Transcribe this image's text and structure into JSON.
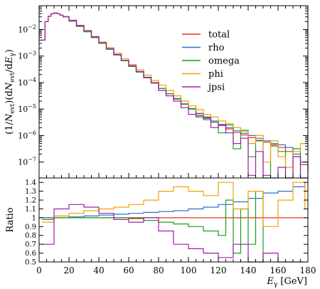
{
  "chart_data": [
    {
      "type": "line",
      "title": "",
      "ylabel": "(1/N_evt)(dN_evt/dE_γ)",
      "xlabel": "",
      "xlim": [
        0,
        180
      ],
      "ylim_log10": [
        -7.6,
        -1.1
      ],
      "yscale": "log",
      "yticks": [
        {
          "exp": -2,
          "label": "10^-2"
        },
        {
          "exp": -3,
          "label": "10^-3"
        },
        {
          "exp": -4,
          "label": "10^-4"
        },
        {
          "exp": -5,
          "label": "10^-5"
        },
        {
          "exp": -6,
          "label": "10^-6"
        },
        {
          "exp": -7,
          "label": "10^-7"
        }
      ],
      "legend_position": "top-right",
      "grid": false,
      "series": [
        {
          "name": "total",
          "color": "#e8301c",
          "x": [
            2,
            4,
            6,
            8,
            10,
            12,
            14,
            16,
            20,
            25,
            30,
            35,
            40,
            45,
            50,
            55,
            60,
            65,
            70,
            75,
            80,
            85,
            90,
            95,
            100,
            105,
            110,
            115,
            120,
            125,
            130,
            135,
            140,
            145,
            150,
            155,
            160,
            165,
            170,
            175,
            180
          ],
          "values_log10": [
            -2.4,
            -1.7,
            -1.5,
            -1.4,
            -1.38,
            -1.4,
            -1.46,
            -1.52,
            -1.68,
            -1.88,
            -2.08,
            -2.3,
            -2.52,
            -2.74,
            -2.96,
            -3.18,
            -3.39,
            -3.6,
            -3.82,
            -4.02,
            -4.22,
            -4.42,
            -4.62,
            -4.82,
            -5.0,
            -5.18,
            -5.33,
            -5.5,
            -5.62,
            -5.75,
            -5.88,
            -5.98,
            -6.08,
            -6.18,
            -6.25,
            -6.35,
            -6.45,
            -6.6,
            -6.8,
            -7.1,
            -7.3
          ]
        },
        {
          "name": "rho",
          "color": "#2b6fd6",
          "x": [
            2,
            4,
            6,
            8,
            10,
            12,
            14,
            16,
            20,
            25,
            30,
            35,
            40,
            45,
            50,
            55,
            60,
            65,
            70,
            75,
            80,
            85,
            90,
            95,
            100,
            105,
            110,
            115,
            120,
            125,
            130,
            135,
            140,
            145,
            150,
            155,
            160,
            165,
            170,
            175,
            180
          ],
          "values_log10": [
            -2.4,
            -1.7,
            -1.5,
            -1.4,
            -1.38,
            -1.4,
            -1.46,
            -1.52,
            -1.68,
            -1.88,
            -2.08,
            -2.3,
            -2.52,
            -2.74,
            -2.96,
            -3.18,
            -3.39,
            -3.6,
            -3.82,
            -4.02,
            -4.22,
            -4.42,
            -4.6,
            -4.8,
            -4.98,
            -5.16,
            -5.3,
            -5.45,
            -5.58,
            -5.7,
            -5.82,
            -5.92,
            -6.0,
            -6.1,
            -6.2,
            -6.3,
            -6.35,
            -6.45,
            -6.7,
            -7.0,
            -7.3
          ]
        },
        {
          "name": "omega",
          "color": "#1b9e1b",
          "x": [
            2,
            4,
            6,
            8,
            10,
            12,
            14,
            16,
            20,
            25,
            30,
            35,
            40,
            45,
            50,
            55,
            60,
            65,
            70,
            75,
            80,
            85,
            90,
            95,
            100,
            105,
            110,
            115,
            120,
            125,
            130,
            135,
            140,
            145,
            150,
            155,
            160,
            165,
            170,
            175,
            180
          ],
          "values_log10": [
            -2.4,
            -1.7,
            -1.5,
            -1.4,
            -1.38,
            -1.4,
            -1.46,
            -1.52,
            -1.68,
            -1.88,
            -2.08,
            -2.3,
            -2.52,
            -2.74,
            -2.96,
            -3.18,
            -3.39,
            -3.6,
            -3.82,
            -4.02,
            -4.22,
            -4.42,
            -4.62,
            -4.82,
            -5.0,
            -5.3,
            -5.4,
            -5.5,
            -5.9,
            -5.6,
            -6.5,
            -5.8,
            -6.8,
            -6.2,
            -7.6,
            -6.4,
            -6.6,
            -7.6,
            -6.5,
            -7.6,
            -7.3
          ]
        },
        {
          "name": "phi",
          "color": "#f5a000",
          "x": [
            2,
            4,
            6,
            8,
            10,
            12,
            14,
            16,
            20,
            25,
            30,
            35,
            40,
            45,
            50,
            55,
            60,
            65,
            70,
            75,
            80,
            85,
            90,
            95,
            100,
            105,
            110,
            115,
            120,
            125,
            130,
            135,
            140,
            145,
            150,
            155,
            160,
            165,
            170,
            175,
            180
          ],
          "values_log10": [
            -2.4,
            -1.7,
            -1.5,
            -1.4,
            -1.38,
            -1.4,
            -1.46,
            -1.51,
            -1.66,
            -1.85,
            -2.05,
            -2.26,
            -2.47,
            -2.68,
            -2.89,
            -3.1,
            -3.32,
            -3.52,
            -3.72,
            -3.92,
            -4.1,
            -4.3,
            -4.5,
            -4.7,
            -4.88,
            -5.02,
            -5.2,
            -5.3,
            -5.45,
            -5.55,
            -5.7,
            -5.85,
            -6.3,
            -6.0,
            -7.0,
            -6.2,
            -6.8,
            -7.2,
            -6.6,
            -6.3,
            -7.3
          ]
        },
        {
          "name": "jpsi",
          "color": "#a21bb0",
          "x": [
            2,
            4,
            6,
            8,
            10,
            12,
            14,
            16,
            20,
            25,
            30,
            35,
            40,
            45,
            50,
            55,
            60,
            65,
            70,
            75,
            80,
            85,
            90,
            95,
            100,
            105,
            110,
            115,
            120,
            125,
            130,
            135,
            140,
            145,
            150,
            155,
            160,
            165,
            170,
            175,
            180
          ],
          "values_log10": [
            -2.4,
            -1.7,
            -1.5,
            -1.4,
            -1.38,
            -1.4,
            -1.46,
            -1.51,
            -1.65,
            -1.84,
            -2.04,
            -2.27,
            -2.5,
            -2.72,
            -2.94,
            -3.16,
            -3.36,
            -3.58,
            -3.8,
            -4.0,
            -4.3,
            -4.5,
            -4.7,
            -4.95,
            -5.2,
            -5.25,
            -5.35,
            -5.7,
            -5.6,
            -5.9,
            -6.3,
            -6.1,
            -7.5,
            -6.6,
            -7.5,
            -7.6,
            -7.2,
            -7.6,
            -6.8,
            -7.6,
            -7.6
          ]
        }
      ]
    },
    {
      "type": "line",
      "title": "",
      "ylabel": "Ratio",
      "xlabel": "E_γ [GeV]",
      "xlim": [
        0,
        180
      ],
      "ylim": [
        0.5,
        1.45
      ],
      "xticks": [
        0,
        20,
        40,
        60,
        80,
        100,
        120,
        140,
        160,
        180
      ],
      "yticks": [
        0.5,
        0.6,
        0.7,
        0.8,
        0.9,
        1,
        1.1,
        1.2,
        1.3,
        1.4
      ],
      "series": [
        {
          "name": "total",
          "color": "#e8301c",
          "x": [
            0,
            180
          ],
          "values": [
            1.0,
            1.0
          ]
        },
        {
          "name": "rho",
          "color": "#2b6fd6",
          "x": [
            2,
            10,
            20,
            30,
            40,
            50,
            60,
            70,
            80,
            90,
            100,
            110,
            120,
            130,
            140,
            150,
            160,
            170,
            178
          ],
          "values": [
            1.0,
            1.0,
            1.01,
            1.02,
            1.03,
            1.04,
            1.05,
            1.06,
            1.07,
            1.08,
            1.1,
            1.12,
            1.15,
            1.18,
            1.22,
            1.28,
            1.3,
            1.35,
            1.4
          ]
        },
        {
          "name": "omega",
          "color": "#1b9e1b",
          "x": [
            2,
            10,
            20,
            30,
            40,
            50,
            60,
            70,
            80,
            90,
            100,
            110,
            120,
            125,
            130,
            135,
            140,
            145,
            150
          ],
          "values": [
            0.98,
            1.0,
            1.0,
            1.0,
            1.0,
            1.0,
            0.99,
            0.97,
            0.95,
            0.93,
            0.9,
            0.85,
            0.8,
            1.2,
            0.6,
            1.1,
            0.7,
            1.3,
            0.5
          ]
        },
        {
          "name": "phi",
          "color": "#f5a000",
          "x": [
            2,
            10,
            20,
            30,
            40,
            50,
            60,
            70,
            80,
            90,
            100,
            110,
            120,
            130,
            140,
            150,
            160,
            170,
            178
          ],
          "values": [
            0.95,
            1.02,
            1.05,
            1.08,
            1.1,
            1.12,
            1.15,
            1.2,
            1.3,
            1.35,
            1.3,
            1.25,
            1.4,
            1.1,
            1.3,
            0.9,
            1.2,
            1.4,
            1.1
          ]
        },
        {
          "name": "jpsi",
          "color": "#a21bb0",
          "x": [
            2,
            10,
            20,
            30,
            40,
            50,
            60,
            70,
            80,
            90,
            100,
            110,
            120,
            130,
            140,
            150,
            160,
            170,
            178
          ],
          "values": [
            0.7,
            1.1,
            1.15,
            1.12,
            1.05,
            0.98,
            0.95,
            1.0,
            0.85,
            0.7,
            0.65,
            0.6,
            0.55,
            0.7,
            0.5,
            0.6,
            0.5,
            0.5,
            0.5
          ]
        }
      ]
    }
  ]
}
